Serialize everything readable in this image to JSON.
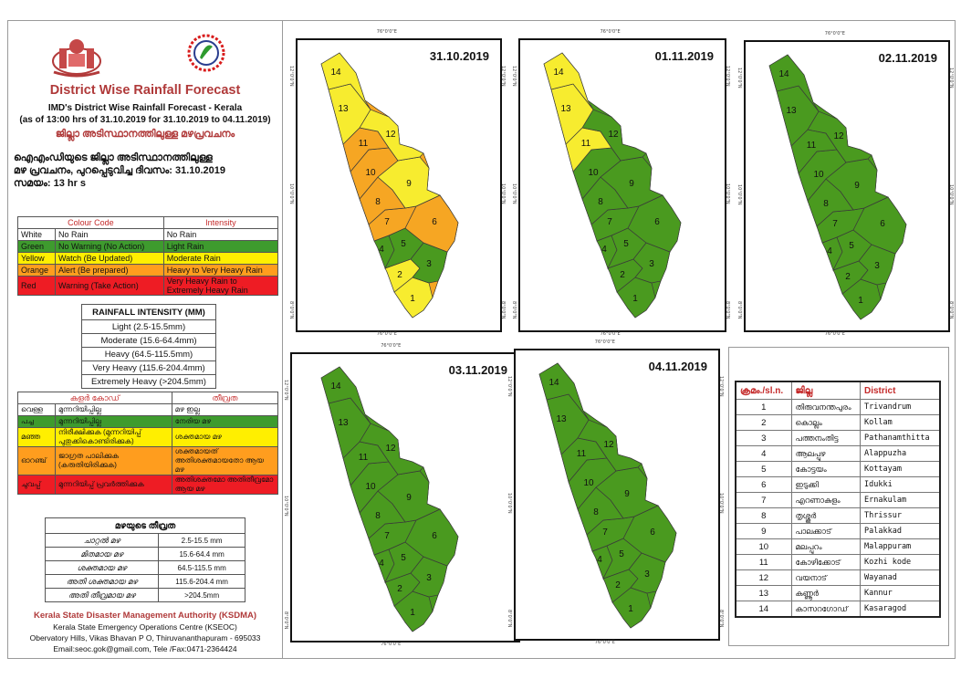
{
  "header": {
    "title": "District Wise Rainfall Forecast",
    "subtitle_line1": "IMD's District Wise Rainfall Forecast - Kerala",
    "subtitle_line2": "(as of 13:00 hrs of 31.10.2019  for 31.10.2019  to 04.11.2019)",
    "mal_title": "ജില്ലാ അടിസ്ഥാനത്തിലുള്ള മഴപ്രവചനം",
    "mal_line1": "ഐഎംഡിയുടെ ജില്ലാ  അടിസ്ഥാനത്തിലുള്ള",
    "mal_line2": "മഴ പ്രവചനം, പുറപ്പെടുവിച്ച  ദിവസം: 31.10.2019",
    "mal_line3": "സമയം: 13 hr s"
  },
  "colors": {
    "white": "#ffffff",
    "green": "#3e9b2e",
    "yellow": "#ffef00",
    "orange": "#ff9d1e",
    "red": "#ee1c24",
    "map_green": "#4a9a1f",
    "map_yellow": "#f7ec2f",
    "map_orange": "#f6a623"
  },
  "colour_code_table": {
    "headers": [
      "Colour Code",
      "Intensity"
    ],
    "rows": [
      {
        "code": "White",
        "meaning": "No Rain",
        "intensity": "No Rain",
        "color": "#ffffff"
      },
      {
        "code": "Green",
        "meaning": "No Warning (No Action)",
        "intensity": "Light Rain",
        "color": "#3e9b2e"
      },
      {
        "code": "Yellow",
        "meaning": "Watch (Be Updated)",
        "intensity": "Moderate Rain",
        "color": "#ffef00"
      },
      {
        "code": "Orange",
        "meaning": "Alert (Be prepared)",
        "intensity": "Heavy to Very Heavy Rain",
        "color": "#ff9d1e"
      },
      {
        "code": "Red",
        "meaning": "Warning (Take Action)",
        "intensity": "Very Heavy Rain to Extremely Heavy Rain",
        "color": "#ee1c24"
      }
    ]
  },
  "rainfall_intensity": {
    "title": "RAINFALL INTENSITY (MM)",
    "rows": [
      "Light (2.5-15.5mm)",
      "Moderate (15.6-64.4mm)",
      "Heavy (64.5-115.5mm)",
      "Very Heavy (115.6-204.4mm)",
      "Extremely Heavy (>204.5mm)"
    ]
  },
  "mal_colour_table": {
    "headers": [
      "കളർ കോഡ്",
      "തീവ്രത"
    ],
    "rows": [
      {
        "code": "വെള്ള",
        "meaning": "മുന്നറിയിപ്പില്ല",
        "intensity": "മഴ ഇല്ല",
        "color": "#ffffff"
      },
      {
        "code": "പച്ച",
        "meaning": "മുന്നറിയിപ്പില്ല",
        "intensity": "നേരിയ മഴ",
        "color": "#3e9b2e"
      },
      {
        "code": "മഞ്ഞ",
        "meaning": "നിരീക്ഷിക്കുക (മുന്നറിയിപ്പ് പുതുക്കികൊണ്ടിരിക്കുക)",
        "intensity": "ശക്തമായ മഴ",
        "color": "#ffef00"
      },
      {
        "code": "ഓറഞ്ച്",
        "meaning": "ജാഗ്രത പാലിക്കുക (കരുതിയിരിക്കുക)",
        "intensity": "ശക്തമായത് അതിശക്തമായതോ ആയ മഴ",
        "color": "#ff9d1e"
      },
      {
        "code": "ചുവപ്പ്",
        "meaning": "മുന്നറിയിപ്പ് പ്രവർത്തിക്കുക",
        "intensity": "അതിശക്തമോ അതിതീവ്രമോ ആയ മഴ",
        "color": "#ee1c24"
      }
    ]
  },
  "mal_intensity_table": {
    "title": "മഴയുടെ തീവ്രത",
    "rows": [
      {
        "label": "ചാറ്റൽ മഴ",
        "range": "2.5-15.5 mm"
      },
      {
        "label": "മിതമായ മഴ",
        "range": "15.6-64.4 mm"
      },
      {
        "label": "ശക്തമായ മഴ",
        "range": "64.5-115.5 mm"
      },
      {
        "label": "അതി ശക്തമായ മഴ",
        "range": "115.6-204.4 mm"
      },
      {
        "label": "അതി തീവ്രമായ മഴ",
        "range": ">204.5mm"
      }
    ]
  },
  "footer": {
    "org": "Kerala State Disaster Management Authority (KSDMA)",
    "centre": "Kerala State Emergency Operations Centre (KSEOC)",
    "address": "Obervatory Hills, Vikas Bhavan P O, Thiruvananthapuram - 695033",
    "contact": "Email:seoc.gok@gmail.com, Tele /Fax:0471-2364424"
  },
  "maps": [
    {
      "date": "31.10.2019",
      "levels": [
        "yellow",
        "yellow",
        "green",
        "green",
        "green",
        "orange",
        "orange",
        "orange",
        "yellow",
        "orange",
        "orange",
        "yellow",
        "yellow",
        "yellow"
      ]
    },
    {
      "date": "01.11.2019",
      "levels": [
        "green",
        "green",
        "green",
        "green",
        "green",
        "green",
        "green",
        "green",
        "green",
        "green",
        "yellow",
        "green",
        "yellow",
        "yellow"
      ]
    },
    {
      "date": "02.11.2019",
      "levels": [
        "green",
        "green",
        "green",
        "green",
        "green",
        "green",
        "green",
        "green",
        "green",
        "green",
        "green",
        "green",
        "green",
        "green"
      ]
    },
    {
      "date": "03.11.2019",
      "levels": [
        "green",
        "green",
        "green",
        "green",
        "green",
        "green",
        "green",
        "green",
        "green",
        "green",
        "green",
        "green",
        "green",
        "green"
      ]
    },
    {
      "date": "04.11.2019",
      "levels": [
        "green",
        "green",
        "green",
        "green",
        "green",
        "green",
        "green",
        "green",
        "green",
        "green",
        "green",
        "green",
        "green",
        "green"
      ]
    }
  ],
  "map_ticks": {
    "lon": "76°0'0\"E",
    "lat": [
      "12°0'0\"N",
      "10°0'0\"N",
      "8°0'0\"N"
    ]
  },
  "district_table": {
    "headers": [
      "ക്രമം./sl.n.",
      "ജില്ല",
      "District"
    ],
    "rows": [
      {
        "n": "1",
        "mal": "തിരുവനന്തപുരം",
        "en": "Trivandrum"
      },
      {
        "n": "2",
        "mal": "കൊല്ലം",
        "en": "Kollam"
      },
      {
        "n": "3",
        "mal": "പത്തനംതിട്ട",
        "en": "Pathanamthitta"
      },
      {
        "n": "4",
        "mal": "ആലപ്പുഴ",
        "en": "Alappuzha"
      },
      {
        "n": "5",
        "mal": "കോട്ടയം",
        "en": "Kottayam"
      },
      {
        "n": "6",
        "mal": "ഇടുക്കി",
        "en": "Idukki"
      },
      {
        "n": "7",
        "mal": "എറണാകുളം",
        "en": "Ernakulam"
      },
      {
        "n": "8",
        "mal": "തൃശ്ശൂർ",
        "en": "Thrissur"
      },
      {
        "n": "9",
        "mal": "പാലക്കാട്",
        "en": "Palakkad"
      },
      {
        "n": "10",
        "mal": "മലപ്പുറം",
        "en": "Malappuram"
      },
      {
        "n": "11",
        "mal": "കോഴിക്കോട്",
        "en": "Kozhi kode"
      },
      {
        "n": "12",
        "mal": "വയനാട്",
        "en": "Wayanad"
      },
      {
        "n": "13",
        "mal": "കണ്ണൂർ",
        "en": "Kannur"
      },
      {
        "n": "14",
        "mal": "കാസറഗോഡ്",
        "en": "Kasaragod"
      }
    ]
  }
}
